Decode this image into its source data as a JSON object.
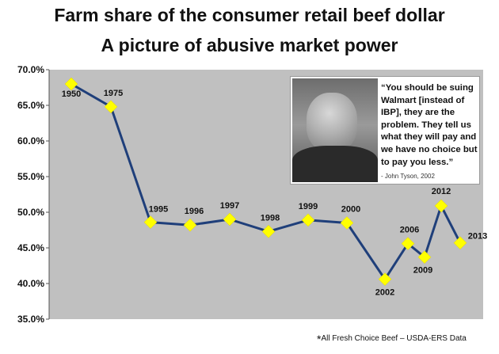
{
  "chart_data": {
    "type": "line",
    "title": "Farm share of the consumer retail beef dollar",
    "subtitle": "A picture of abusive market power",
    "xlabel": "",
    "ylabel": "",
    "ylim": [
      35.0,
      70.0
    ],
    "y_ticks": [
      "70.0%",
      "65.0%",
      "60.0%",
      "55.0%",
      "50.0%",
      "45.0%",
      "40.0%",
      "35.0%"
    ],
    "grid": false,
    "line_color": "#1f3f7a",
    "marker_color": "#ffff00",
    "plot_background": "#c0c0c0",
    "points": [
      {
        "label": "1950",
        "value": 68.0
      },
      {
        "label": "1975",
        "value": 64.8
      },
      {
        "label": "1995",
        "value": 48.6
      },
      {
        "label": "1996",
        "value": 48.2
      },
      {
        "label": "1997",
        "value": 49.0
      },
      {
        "label": "1998",
        "value": 47.3
      },
      {
        "label": "1999",
        "value": 48.9
      },
      {
        "label": "2000",
        "value": 48.5
      },
      {
        "label": "2002",
        "value": 40.6
      },
      {
        "label": "2006",
        "value": 45.6
      },
      {
        "label": "2009",
        "value": 43.7
      },
      {
        "label": "2012",
        "value": 50.9
      },
      {
        "label": "2013",
        "value": 45.7
      }
    ]
  },
  "quote": {
    "text": "“You should be suing Walmart [instead of IBP], they are the problem. They tell us what they will pay and we have no choice but to pay you less.”",
    "attribution": "- John Tyson, 2002"
  },
  "footnote": {
    "marker": "*",
    "text": "All Fresh Choice Beef – USDA-ERS Data"
  }
}
